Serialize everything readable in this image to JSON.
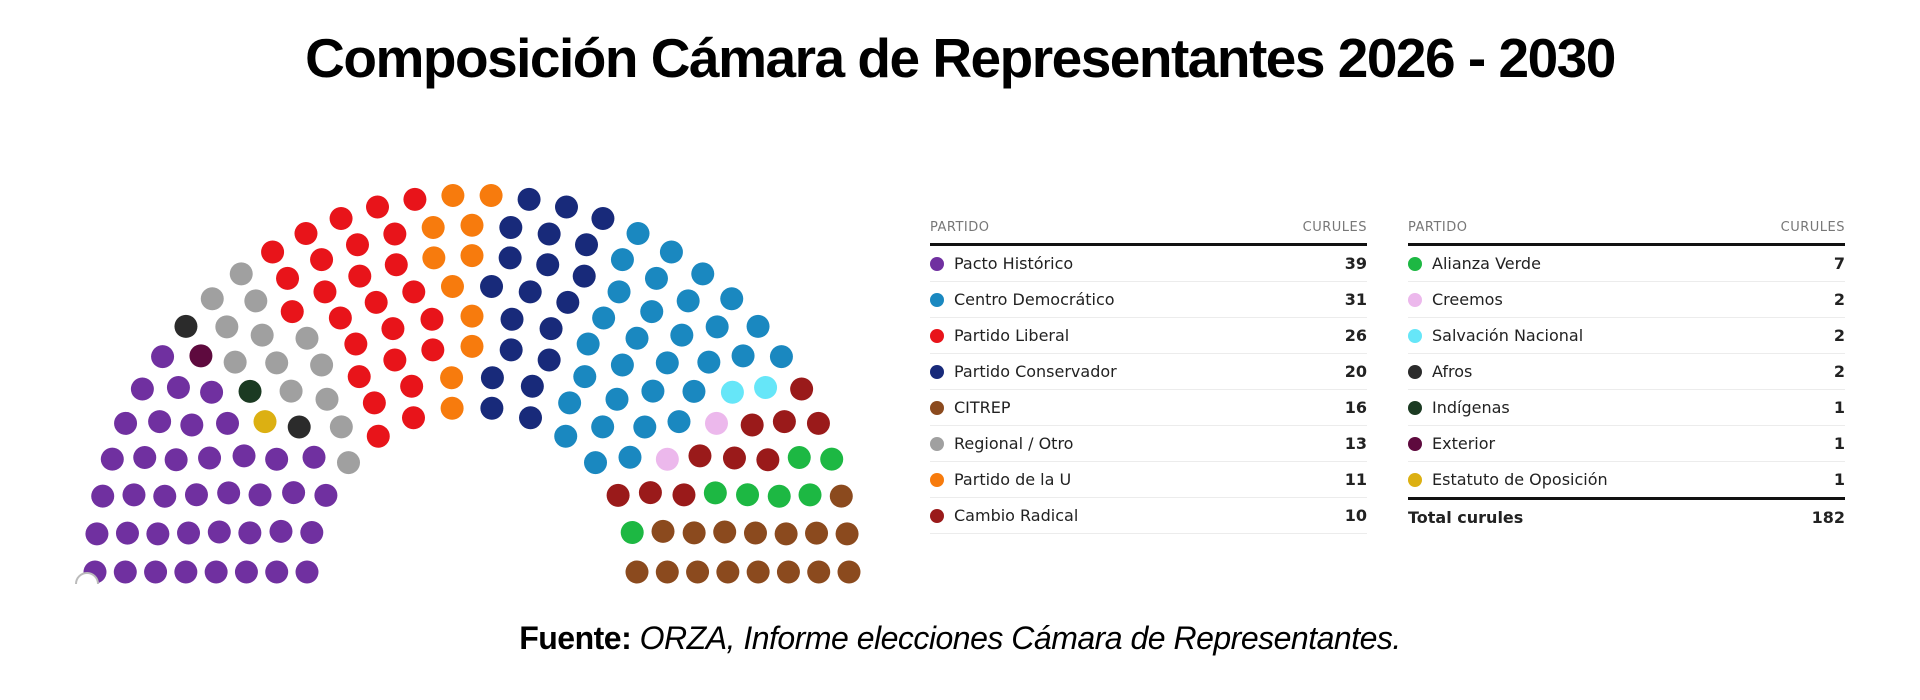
{
  "title": "Composición Cámara de Representantes 2026 - 2030",
  "chart_data": {
    "type": "parliament",
    "title": "Composición Cámara de Representantes 2026 - 2030",
    "total_label": "Total curules",
    "total": 182,
    "column_headers": {
      "party": "PARTIDO",
      "seats": "CURULES"
    },
    "parties": [
      {
        "name": "Pacto Histórico",
        "seats": 39,
        "color": "#7030a0"
      },
      {
        "name": "Centro Democrático",
        "seats": 31,
        "color": "#1a88c0"
      },
      {
        "name": "Partido Liberal",
        "seats": 26,
        "color": "#e8141a"
      },
      {
        "name": "Partido Conservador",
        "seats": 20,
        "color": "#182a7a"
      },
      {
        "name": "CITREP",
        "seats": 16,
        "color": "#8b4a1e"
      },
      {
        "name": "Regional / Otro",
        "seats": 13,
        "color": "#a0a0a0"
      },
      {
        "name": "Partido de la U",
        "seats": 11,
        "color": "#f77b0d"
      },
      {
        "name": "Cambio Radical",
        "seats": 10,
        "color": "#9a1a1a"
      },
      {
        "name": "Alianza Verde",
        "seats": 7,
        "color": "#1db843"
      },
      {
        "name": "Creemos",
        "seats": 2,
        "color": "#ecb8ec"
      },
      {
        "name": "Salvación Nacional",
        "seats": 2,
        "color": "#66e6f8"
      },
      {
        "name": "Afros",
        "seats": 2,
        "color": "#2b2b2b"
      },
      {
        "name": "Indígenas",
        "seats": 1,
        "color": "#1b3a22"
      },
      {
        "name": "Exterior",
        "seats": 1,
        "color": "#5e0a3e"
      },
      {
        "name": "Estatuto de Oposición",
        "seats": 1,
        "color": "#dcb012"
      }
    ]
  },
  "source": {
    "label": "Fuente:",
    "text": " ORZA, Informe elecciones Cámara de Representantes."
  }
}
